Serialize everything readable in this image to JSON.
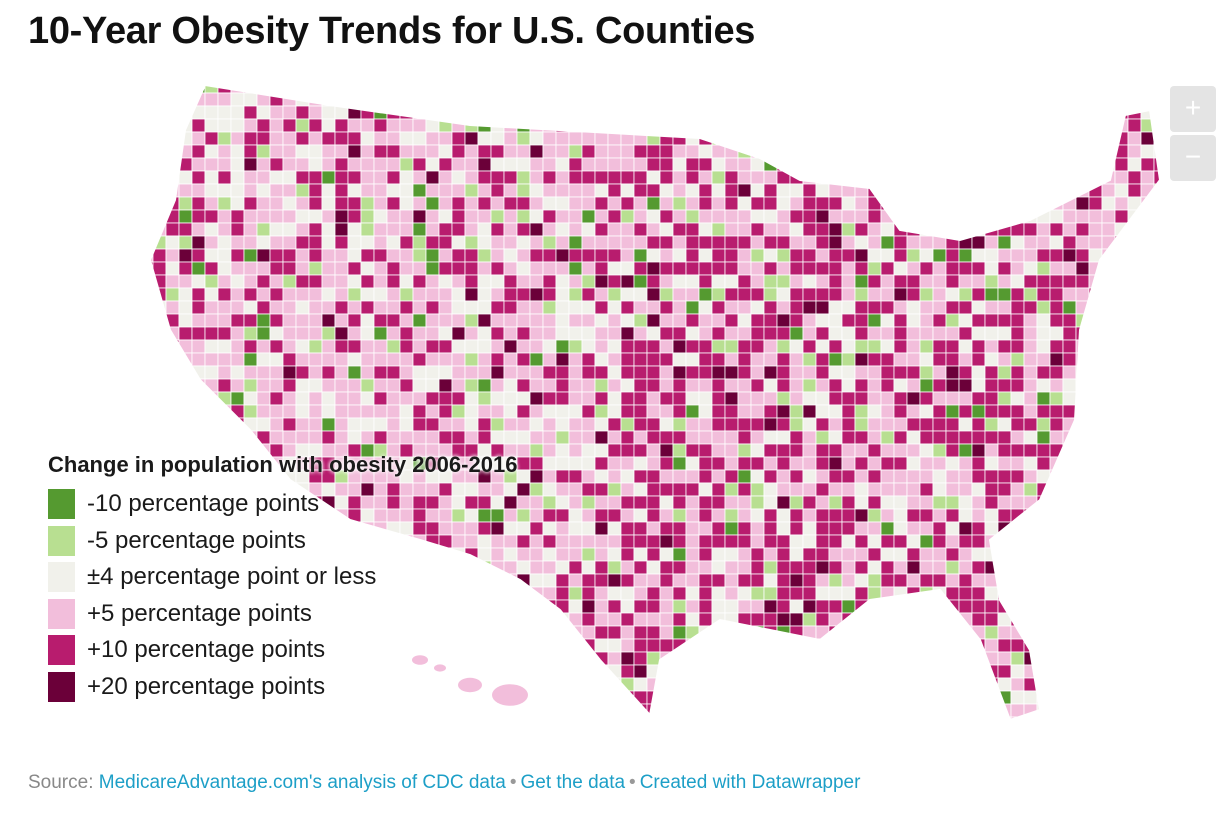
{
  "title": "10-Year Obesity Trends for U.S. Counties",
  "zoom_controls": {
    "zoom_in": "+",
    "zoom_out": "−"
  },
  "legend": {
    "title": "Change in population with obesity 2006-2016",
    "items": [
      {
        "label": "-10 percentage points",
        "color": "#559a30"
      },
      {
        "label": "-5 percentage points",
        "color": "#b8df91"
      },
      {
        "label": "±4 percentage point or less",
        "color": "#f1f1eb"
      },
      {
        "label": "+5 percentage points",
        "color": "#f2bedb"
      },
      {
        "label": "+10 percentage points",
        "color": "#b81c6e"
      },
      {
        "label": "+20 percentage points",
        "color": "#6b0039"
      }
    ]
  },
  "footer": {
    "source_prefix": "Source:",
    "source_link": "MedicareAdvantage.com's analysis of CDC data",
    "get_data": "Get the data",
    "created_with": "Created with Datawrapper"
  }
}
